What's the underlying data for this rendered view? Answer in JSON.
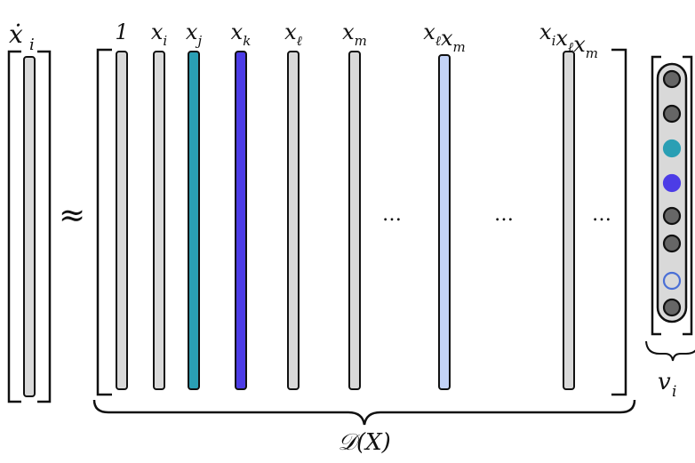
{
  "lhs": {
    "label": "ẋ",
    "subscript": "i"
  },
  "approx": "≈",
  "library": {
    "columns": [
      {
        "label": "1",
        "sub": "",
        "color": "#d9d9d9"
      },
      {
        "label": "x",
        "sub": "i",
        "color": "#d9d9d9"
      },
      {
        "label": "x",
        "sub": "j",
        "color": "#2a9fb4"
      },
      {
        "label": "x",
        "sub": "k",
        "color": "#4c3ce6"
      },
      {
        "label": "x",
        "sub": "ℓ",
        "color": "#d9d9d9"
      },
      {
        "label": "x",
        "sub": "m",
        "color": "#d9d9d9"
      },
      {
        "label": "x",
        "sub": "ℓ",
        "label2": "x",
        "sub2": "m",
        "color": "#c3d3f7"
      },
      {
        "label": "x",
        "sub": "i",
        "label2": "x",
        "sub2": "ℓ",
        "label3": "x",
        "sub3": "m",
        "color": "#d9d9d9"
      }
    ],
    "ellipses": [
      "…",
      "…",
      "…"
    ],
    "brace_label": "𝒟(X)"
  },
  "coefficients": {
    "label": "v",
    "subscript": "i",
    "dots": [
      {
        "state": "gray"
      },
      {
        "state": "gray"
      },
      {
        "state": "teal"
      },
      {
        "state": "blue"
      },
      {
        "state": "gray"
      },
      {
        "state": "gray"
      },
      {
        "state": "light-outline"
      },
      {
        "state": "gray"
      }
    ]
  },
  "colors": {
    "gray_column": "#d9d9d9",
    "teal": "#2a9fb4",
    "blue": "#4c3ce6",
    "light_blue": "#c3d3f7",
    "dot_gray": "#666666",
    "dot_outline": "#4a6fd6",
    "stroke": "#111111"
  }
}
